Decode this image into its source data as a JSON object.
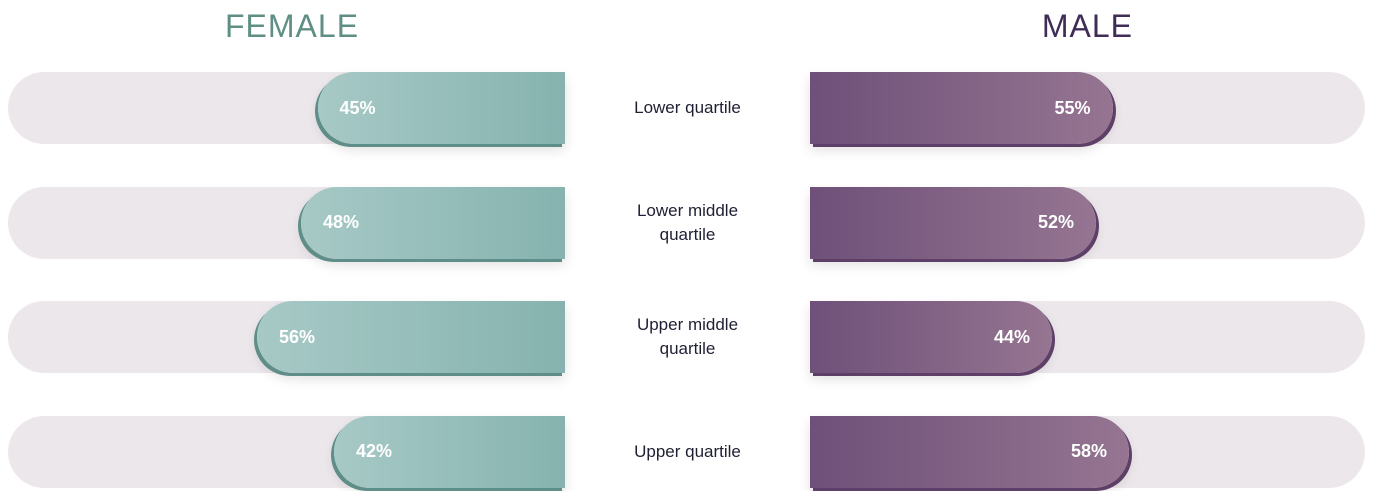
{
  "chart_data": {
    "type": "bar",
    "layout": "diverging-horizontal",
    "categories": [
      "Lower quartile",
      "Lower middle quartile",
      "Upper middle quartile",
      "Upper quartile"
    ],
    "series": [
      {
        "name": "FEMALE",
        "color": "#86b3af",
        "values": [
          45,
          48,
          56,
          42
        ],
        "labels": [
          "45%",
          "48%",
          "56%",
          "42%"
        ]
      },
      {
        "name": "MALE",
        "color": "#7b5a84",
        "values": [
          55,
          52,
          44,
          58
        ],
        "labels": [
          "55%",
          "52%",
          "44%",
          "58%"
        ]
      }
    ],
    "xlim": [
      0,
      100
    ]
  }
}
